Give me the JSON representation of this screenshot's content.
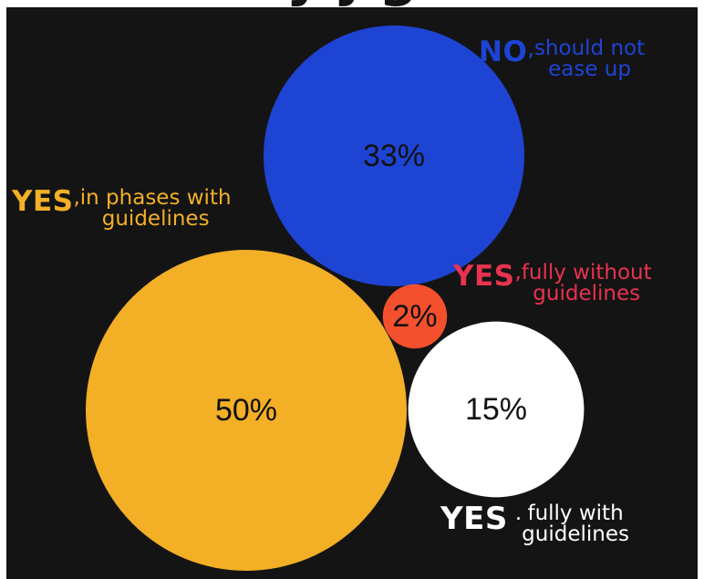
{
  "clipped_title": "y j  g",
  "colors": {
    "background": "#141414",
    "no_bubble": "#1e44d4",
    "yes_phases_bubble": "#f3af26",
    "yes_fully_without_bubble": "#f5502d",
    "yes_fully_with_bubble": "#ffffff",
    "no_label": "#1e44d4",
    "yes_phases_label": "#f3af26",
    "yes_fully_without_label": "#e8334f",
    "yes_fully_with_label": "#ffffff"
  },
  "chart_data": {
    "type": "bubble",
    "unit": "%",
    "series": [
      {
        "id": "no",
        "value": 33,
        "value_label": "33%",
        "answer": "NO",
        "punct": ",",
        "description_lines": [
          "should not",
          "ease up"
        ]
      },
      {
        "id": "yes-phases",
        "value": 50,
        "value_label": "50%",
        "answer": "YES",
        "punct": ",",
        "description_lines": [
          "in phases with",
          "guidelines"
        ]
      },
      {
        "id": "yes-fully-without",
        "value": 2,
        "value_label": "2%",
        "answer": "YES",
        "punct": ",",
        "description_lines": [
          "fully without",
          "guidelines"
        ]
      },
      {
        "id": "yes-fully-with",
        "value": 15,
        "value_label": "15%",
        "answer": "YES",
        "punct": ".",
        "description_lines": [
          "fully with",
          "guidelines"
        ]
      }
    ]
  }
}
